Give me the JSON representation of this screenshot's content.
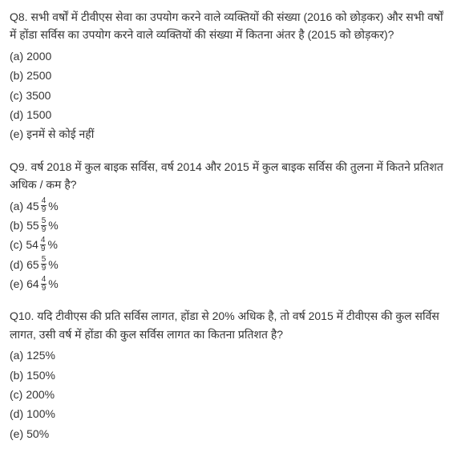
{
  "questions": [
    {
      "id": "q8",
      "label": "Q8.",
      "text": "सभी वर्षों में टीवीएस सेवा का उपयोग करने वाले व्यक्तियों की संख्या (2016 को छोड़कर) और सभी वर्षों में होंडा सर्विस का उपयोग करने वाले व्यक्तियों की संख्या में कितना अंतर है (2015 को छोड़कर)?",
      "options": [
        {
          "label": "(a)",
          "text": "2000",
          "type": "plain"
        },
        {
          "label": "(b)",
          "text": "2500",
          "type": "plain"
        },
        {
          "label": "(c)",
          "text": "3500",
          "type": "plain"
        },
        {
          "label": "(d)",
          "text": "1500",
          "type": "plain"
        },
        {
          "label": "(e)",
          "text": "इनमें से कोई नहीं",
          "type": "plain"
        }
      ]
    },
    {
      "id": "q9",
      "label": "Q9.",
      "text": "वर्ष 2018 में कुल बाइक सर्विस, वर्ष 2014 और 2015 में कुल बाइक सर्विस की तुलना में कितने प्रतिशत अधिक / कम है?",
      "options": [
        {
          "label": "(a)",
          "type": "mixed",
          "whole": "45",
          "num": "4",
          "den": "9",
          "suffix": "%"
        },
        {
          "label": "(b)",
          "type": "mixed",
          "whole": "55",
          "num": "5",
          "den": "9",
          "suffix": "%"
        },
        {
          "label": "(c)",
          "type": "mixed",
          "whole": "54",
          "num": "4",
          "den": "9",
          "suffix": "%"
        },
        {
          "label": "(d)",
          "type": "mixed",
          "whole": "65",
          "num": "5",
          "den": "9",
          "suffix": "%"
        },
        {
          "label": "(e)",
          "type": "mixed",
          "whole": "64",
          "num": "4",
          "den": "9",
          "suffix": "%"
        }
      ]
    },
    {
      "id": "q10",
      "label": "Q10.",
      "text": "यदि टीवीएस की प्रति सर्विस लागत, होंडा से 20% अधिक है, तो वर्ष 2015 में टीवीएस की कुल सर्विस लागत, उसी वर्ष में होंडा की कुल सर्विस लागत का कितना प्रतिशत है?",
      "options": [
        {
          "label": "(a)",
          "text": "125%",
          "type": "plain"
        },
        {
          "label": "(b)",
          "text": "150%",
          "type": "plain"
        },
        {
          "label": "(c)",
          "text": "200%",
          "type": "plain"
        },
        {
          "label": "(d)",
          "text": "100%",
          "type": "plain"
        },
        {
          "label": "(e)",
          "text": "50%",
          "type": "plain"
        }
      ]
    }
  ],
  "styling": {
    "background_color": "#ffffff",
    "text_color": "#333333",
    "font_family": "Arial, sans-serif",
    "body_font_size": 14,
    "fraction_font_size": 10,
    "line_height": 1.6,
    "question_spacing": 18
  }
}
